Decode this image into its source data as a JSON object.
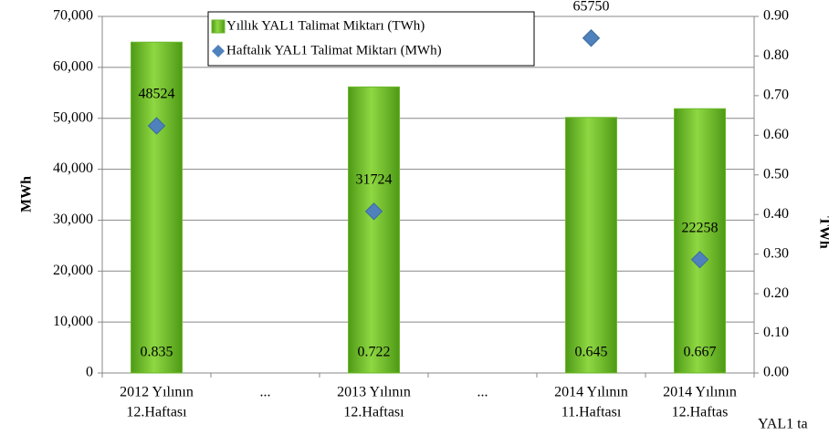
{
  "chart_data": {
    "type": "bar",
    "categories": [
      [
        "2012 Yılının",
        "12.Haftası"
      ],
      [
        "..."
      ],
      [
        "2013 Yılının",
        "12.Haftası"
      ],
      [
        "..."
      ],
      [
        "2014 Yılının",
        "11.Haftası"
      ],
      [
        "2014 Yılının",
        "12.Haftas"
      ]
    ],
    "series": [
      {
        "name": "Yıllık YAL1 Talimat Miktarı (TWh)",
        "type": "bar",
        "axis": "y2",
        "color": "#6ab82a",
        "values": [
          0.835,
          null,
          0.722,
          null,
          0.645,
          0.667
        ]
      },
      {
        "name": "Haftalık YAL1 Talimat Miktarı (MWh)",
        "type": "scatter",
        "color": "#4f81bd",
        "values": [
          48524,
          null,
          31724,
          null,
          65750,
          22258
        ]
      }
    ],
    "ylabel": "MWh",
    "y2label": "TWh",
    "ylim": [
      0,
      70000
    ],
    "yticks": [
      {
        "value": 0,
        "label": "0"
      },
      {
        "value": 10000,
        "label": "10,000"
      },
      {
        "value": 20000,
        "label": "20,000"
      },
      {
        "value": 30000,
        "label": "30,000"
      },
      {
        "value": 40000,
        "label": "40,000"
      },
      {
        "value": 50000,
        "label": "50,000"
      },
      {
        "value": 60000,
        "label": "60,000"
      },
      {
        "value": 70000,
        "label": "70,000"
      }
    ],
    "y2lim": [
      0,
      0.9
    ],
    "y2ticks": [
      {
        "value": 0,
        "label": "0.00"
      },
      {
        "value": 0.1,
        "label": "0.10"
      },
      {
        "value": 0.2,
        "label": "0.20"
      },
      {
        "value": 0.3,
        "label": "0.30"
      },
      {
        "value": 0.4,
        "label": "0.40"
      },
      {
        "value": 0.5,
        "label": "0.50"
      },
      {
        "value": 0.6,
        "label": "0.60"
      },
      {
        "value": 0.7,
        "label": "0.70"
      },
      {
        "value": 0.8,
        "label": "0.80"
      },
      {
        "value": 0.9,
        "label": "0.90"
      }
    ],
    "grid": true,
    "legend": "top",
    "annotations": [
      "YAL1 ta"
    ]
  }
}
